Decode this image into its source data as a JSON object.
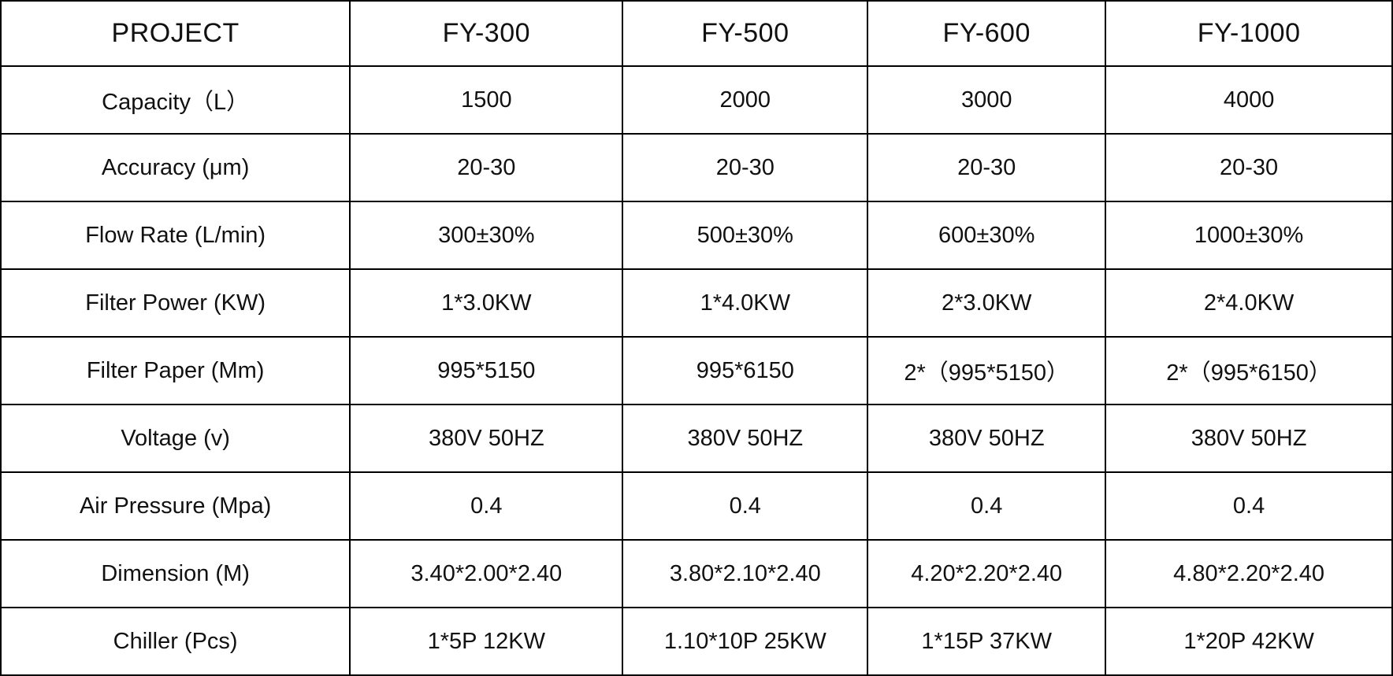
{
  "table": {
    "columns": [
      "PROJECT",
      "FY-300",
      "FY-500",
      "FY-600",
      "FY-1000"
    ],
    "rows": [
      {
        "label": "Capacity（L）",
        "values": [
          "1500",
          "2000",
          "3000",
          "4000"
        ]
      },
      {
        "label": "Accuracy (μm)",
        "values": [
          "20-30",
          "20-30",
          "20-30",
          "20-30"
        ]
      },
      {
        "label": "Flow Rate (L/min)",
        "values": [
          "300±30%",
          "500±30%",
          "600±30%",
          "1000±30%"
        ]
      },
      {
        "label": "Filter Power (KW)",
        "values": [
          "1*3.0KW",
          "1*4.0KW",
          "2*3.0KW",
          "2*4.0KW"
        ]
      },
      {
        "label": "Filter Paper (Mm)",
        "values": [
          "995*5150",
          "995*6150",
          "2*（995*5150）",
          "2*（995*6150）"
        ]
      },
      {
        "label": "Voltage (v)",
        "values": [
          "380V 50HZ",
          "380V 50HZ",
          "380V 50HZ",
          "380V 50HZ"
        ]
      },
      {
        "label": "Air Pressure (Mpa)",
        "values": [
          "0.4",
          "0.4",
          "0.4",
          "0.4"
        ]
      },
      {
        "label": "Dimension (M)",
        "values": [
          "3.40*2.00*2.40",
          "3.80*2.10*2.40",
          "4.20*2.20*2.40",
          "4.80*2.20*2.40"
        ]
      },
      {
        "label": "Chiller (Pcs)",
        "values": [
          "1*5P 12KW",
          "1.10*10P 25KW",
          "1*15P 37KW",
          "1*20P 42KW"
        ]
      }
    ]
  },
  "colors": {
    "border": "#000000",
    "text": "#111111",
    "background": "#ffffff"
  }
}
